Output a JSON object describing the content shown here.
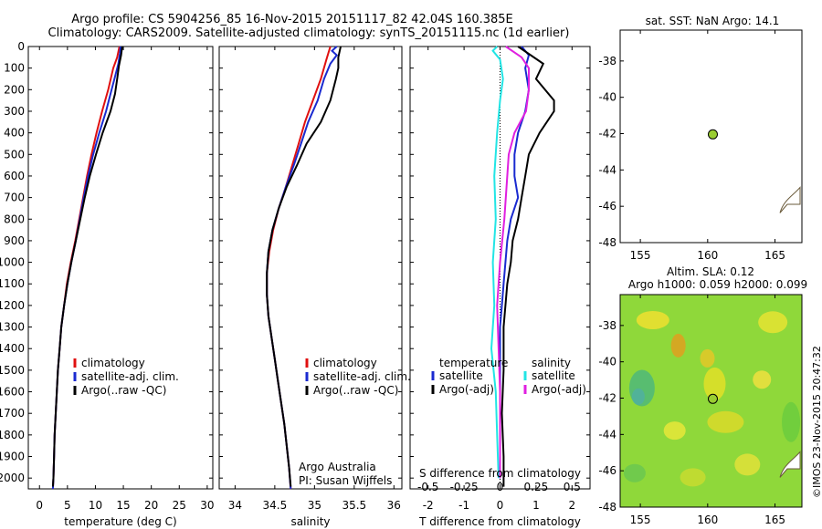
{
  "header": {
    "title": "Argo profile: CS 5904256_85 16-Nov-2015 20151117_82 42.04S 160.385E",
    "subtitle": "Climatology: CARS2009. Satellite-adjusted climatology: synTS_20151115.nc (1d earlier)"
  },
  "colors": {
    "climatology": "#e01010",
    "satellite": "#1a2ad0",
    "argo": "#000000",
    "sal_satellite": "#22e5e5",
    "sal_argo": "#e020e0",
    "marker": "#9acd32",
    "coast": "#6a5a3a"
  },
  "chart_data": [
    {
      "id": "temperature",
      "type": "line",
      "xlabel": "temperature (deg C)",
      "ylabel": "",
      "xlim": [
        -2,
        31
      ],
      "ylim": [
        2050,
        0
      ],
      "x_ticks": [
        "0",
        "5",
        "10",
        "15",
        "20",
        "25",
        "30"
      ],
      "x_tick_values": [
        0,
        5,
        10,
        15,
        20,
        25,
        30
      ],
      "y_ticks": [
        "0",
        "100",
        "200",
        "300",
        "400",
        "500",
        "600",
        "700",
        "800",
        "900",
        "1000",
        "1100",
        "1200",
        "1300",
        "1400",
        "1500",
        "1600",
        "1700",
        "1800",
        "1900",
        "2000"
      ],
      "y_tick_values": [
        0,
        100,
        200,
        300,
        400,
        500,
        600,
        700,
        800,
        900,
        1000,
        1100,
        1200,
        1300,
        1400,
        1500,
        1600,
        1700,
        1800,
        1900,
        2000
      ],
      "legend": [
        "climatology",
        "satellite-adj. clim.",
        "Argo(..raw -QC)"
      ],
      "series": [
        {
          "name": "climatology",
          "color_key": "climatology",
          "points": [
            [
              14.3,
              0
            ],
            [
              13.9,
              50
            ],
            [
              13.2,
              100
            ],
            [
              12.3,
              200
            ],
            [
              11.2,
              300
            ],
            [
              10.2,
              400
            ],
            [
              9.3,
              500
            ],
            [
              8.5,
              600
            ],
            [
              7.8,
              700
            ],
            [
              7.1,
              800
            ],
            [
              6.4,
              900
            ],
            [
              5.6,
              1000
            ],
            [
              4.9,
              1100
            ],
            [
              4.4,
              1200
            ],
            [
              3.9,
              1300
            ],
            [
              3.6,
              1400
            ],
            [
              3.3,
              1500
            ],
            [
              3.1,
              1600
            ],
            [
              2.9,
              1700
            ],
            [
              2.7,
              1800
            ],
            [
              2.6,
              1900
            ],
            [
              2.5,
              2000
            ],
            [
              2.4,
              2050
            ]
          ]
        },
        {
          "name": "satellite-adj. clim.",
          "color_key": "satellite",
          "points": [
            [
              14.5,
              0
            ],
            [
              14.4,
              30
            ],
            [
              14.1,
              80
            ],
            [
              13.4,
              150
            ],
            [
              12.9,
              200
            ],
            [
              11.9,
              300
            ],
            [
              10.7,
              400
            ],
            [
              9.6,
              500
            ],
            [
              8.7,
              600
            ],
            [
              7.9,
              700
            ],
            [
              7.2,
              800
            ],
            [
              6.5,
              900
            ],
            [
              5.7,
              1000
            ],
            [
              5.0,
              1100
            ],
            [
              4.4,
              1200
            ],
            [
              3.9,
              1300
            ],
            [
              3.6,
              1400
            ],
            [
              3.3,
              1500
            ],
            [
              3.1,
              1600
            ],
            [
              2.9,
              1700
            ],
            [
              2.7,
              1800
            ],
            [
              2.6,
              1900
            ],
            [
              2.5,
              2000
            ],
            [
              2.4,
              2050
            ]
          ]
        },
        {
          "name": "Argo(..raw -QC)",
          "color_key": "argo",
          "points": [
            [
              14.8,
              0
            ],
            [
              14.6,
              40
            ],
            [
              14.2,
              90
            ],
            [
              13.9,
              150
            ],
            [
              13.5,
              220
            ],
            [
              12.7,
              300
            ],
            [
              11.3,
              400
            ],
            [
              10.1,
              500
            ],
            [
              9.0,
              600
            ],
            [
              8.1,
              700
            ],
            [
              7.3,
              800
            ],
            [
              6.5,
              900
            ],
            [
              5.7,
              1000
            ],
            [
              5.0,
              1100
            ],
            [
              4.4,
              1200
            ],
            [
              3.9,
              1300
            ],
            [
              3.6,
              1400
            ],
            [
              3.3,
              1500
            ],
            [
              3.1,
              1600
            ],
            [
              2.9,
              1700
            ],
            [
              2.7,
              1800
            ],
            [
              2.6,
              1900
            ],
            [
              2.5,
              2000
            ],
            [
              2.4,
              2040
            ]
          ]
        }
      ]
    },
    {
      "id": "salinity",
      "type": "line",
      "xlabel": "salinity",
      "ylabel": "",
      "xlim": [
        33.8,
        36.1
      ],
      "ylim": [
        2050,
        0
      ],
      "x_ticks": [
        "34",
        "34.5",
        "35",
        "35.5",
        "36"
      ],
      "x_tick_values": [
        34,
        34.5,
        35,
        35.5,
        36
      ],
      "legend": [
        "climatology",
        "satellite-adj. clim.",
        "Argo(..raw -QC)"
      ],
      "annotations": [
        "Argo Australia",
        "PI: Susan Wijffels"
      ],
      "series": [
        {
          "name": "climatology",
          "color_key": "climatology",
          "points": [
            [
              35.2,
              0
            ],
            [
              35.15,
              60
            ],
            [
              35.08,
              150
            ],
            [
              34.98,
              250
            ],
            [
              34.88,
              350
            ],
            [
              34.8,
              450
            ],
            [
              34.72,
              550
            ],
            [
              34.64,
              650
            ],
            [
              34.55,
              750
            ],
            [
              34.48,
              850
            ],
            [
              34.43,
              950
            ],
            [
              34.4,
              1050
            ],
            [
              34.4,
              1150
            ],
            [
              34.42,
              1250
            ],
            [
              34.46,
              1350
            ],
            [
              34.5,
              1450
            ],
            [
              34.54,
              1550
            ],
            [
              34.58,
              1650
            ],
            [
              34.62,
              1750
            ],
            [
              34.65,
              1850
            ],
            [
              34.68,
              1950
            ],
            [
              34.7,
              2050
            ]
          ]
        },
        {
          "name": "satellite-adj. clim.",
          "color_key": "satellite",
          "points": [
            [
              35.28,
              0
            ],
            [
              35.22,
              20
            ],
            [
              35.28,
              40
            ],
            [
              35.2,
              80
            ],
            [
              35.12,
              150
            ],
            [
              35.04,
              250
            ],
            [
              34.92,
              350
            ],
            [
              34.83,
              450
            ],
            [
              34.74,
              550
            ],
            [
              34.64,
              650
            ],
            [
              34.55,
              750
            ],
            [
              34.47,
              850
            ],
            [
              34.42,
              950
            ],
            [
              34.4,
              1050
            ],
            [
              34.4,
              1150
            ],
            [
              34.42,
              1250
            ],
            [
              34.46,
              1350
            ],
            [
              34.5,
              1450
            ],
            [
              34.54,
              1550
            ],
            [
              34.58,
              1650
            ],
            [
              34.62,
              1750
            ],
            [
              34.65,
              1850
            ],
            [
              34.68,
              1950
            ],
            [
              34.7,
              2050
            ]
          ]
        },
        {
          "name": "Argo(..raw -QC)",
          "color_key": "argo",
          "points": [
            [
              35.33,
              0
            ],
            [
              35.3,
              50
            ],
            [
              35.3,
              100
            ],
            [
              35.27,
              150
            ],
            [
              35.2,
              250
            ],
            [
              35.08,
              350
            ],
            [
              34.9,
              450
            ],
            [
              34.78,
              550
            ],
            [
              34.65,
              650
            ],
            [
              34.55,
              750
            ],
            [
              34.47,
              850
            ],
            [
              34.42,
              950
            ],
            [
              34.4,
              1050
            ],
            [
              34.4,
              1150
            ],
            [
              34.42,
              1250
            ],
            [
              34.46,
              1350
            ],
            [
              34.5,
              1450
            ],
            [
              34.54,
              1550
            ],
            [
              34.58,
              1650
            ],
            [
              34.62,
              1750
            ],
            [
              34.65,
              1850
            ],
            [
              34.68,
              1950
            ],
            [
              34.7,
              2040
            ]
          ]
        }
      ]
    },
    {
      "id": "difference",
      "type": "line",
      "xlabel": "T difference from climatology",
      "xlabel_top": "S difference from climatology",
      "ylabel": "",
      "xlim": [
        -2.5,
        2.5
      ],
      "ylim": [
        2050,
        0
      ],
      "x_ticks": [
        "-2",
        "-1",
        "0",
        "1",
        "2"
      ],
      "x_tick_values": [
        -2,
        -1,
        0,
        1,
        2
      ],
      "s_ticks": [
        "-0.5",
        "-0.25",
        "0",
        "0.25",
        "0.5"
      ],
      "s_tick_values": [
        -0.5,
        -0.25,
        0,
        0.25,
        0.5
      ],
      "legend_left_title": "temperature",
      "legend_right_title": "salinity",
      "legend_left": [
        "satellite",
        "Argo(-adj)"
      ],
      "legend_right": [
        "satellite",
        "Argo(-adj)"
      ],
      "series": [
        {
          "name": "satellite",
          "color_key": "satellite",
          "points": [
            [
              0.6,
              0
            ],
            [
              0.8,
              40
            ],
            [
              0.7,
              100
            ],
            [
              0.8,
              200
            ],
            [
              0.7,
              300
            ],
            [
              0.5,
              400
            ],
            [
              0.4,
              500
            ],
            [
              0.4,
              600
            ],
            [
              0.5,
              700
            ],
            [
              0.3,
              800
            ],
            [
              0.2,
              900
            ],
            [
              0.15,
              1000
            ],
            [
              0.1,
              1100
            ],
            [
              0.05,
              1200
            ],
            [
              0.0,
              1300
            ],
            [
              0.0,
              1400
            ],
            [
              0.0,
              1600
            ],
            [
              0.0,
              1800
            ],
            [
              0.0,
              2000
            ]
          ]
        },
        {
          "name": "Argo(-adj)",
          "color_key": "argo",
          "points": [
            [
              0.5,
              0
            ],
            [
              1.2,
              80
            ],
            [
              1.0,
              150
            ],
            [
              1.5,
              250
            ],
            [
              1.5,
              300
            ],
            [
              1.1,
              400
            ],
            [
              0.8,
              500
            ],
            [
              0.7,
              600
            ],
            [
              0.6,
              700
            ],
            [
              0.5,
              800
            ],
            [
              0.35,
              900
            ],
            [
              0.3,
              1000
            ],
            [
              0.2,
              1100
            ],
            [
              0.15,
              1200
            ],
            [
              0.1,
              1300
            ],
            [
              0.1,
              1500
            ],
            [
              0.05,
              1700
            ],
            [
              0.1,
              1900
            ],
            [
              0.1,
              2040
            ]
          ]
        },
        {
          "name": "satellite ",
          "color_key": "sal_satellite",
          "points": [
            [
              -0.02,
              0
            ],
            [
              -0.05,
              20
            ],
            [
              0.0,
              60
            ],
            [
              0.02,
              150
            ],
            [
              0.0,
              250
            ],
            [
              -0.02,
              400
            ],
            [
              -0.04,
              600
            ],
            [
              -0.03,
              800
            ],
            [
              -0.05,
              1000
            ],
            [
              -0.04,
              1200
            ],
            [
              -0.06,
              1400
            ],
            [
              -0.03,
              1600
            ],
            [
              -0.02,
              1800
            ],
            [
              -0.01,
              2000
            ]
          ]
        },
        {
          "name": "Argo(-adj) ",
          "color_key": "sal_argo",
          "points": [
            [
              0.04,
              0
            ],
            [
              0.15,
              50
            ],
            [
              0.2,
              100
            ],
            [
              0.2,
              200
            ],
            [
              0.18,
              300
            ],
            [
              0.1,
              400
            ],
            [
              0.06,
              500
            ],
            [
              0.05,
              600
            ],
            [
              0.03,
              800
            ],
            [
              0.0,
              1000
            ],
            [
              -0.02,
              1200
            ],
            [
              -0.01,
              1400
            ],
            [
              0.0,
              1600
            ],
            [
              0.0,
              1800
            ],
            [
              0.0,
              2000
            ]
          ]
        }
      ]
    },
    {
      "id": "sst-map",
      "type": "scatter",
      "title": "sat. SST: NaN Argo: 14.1",
      "xlim": [
        153.5,
        167
      ],
      "ylim": [
        -48,
        -36.3
      ],
      "x_ticks": [
        "155",
        "160",
        "165"
      ],
      "x_tick_values": [
        155,
        160,
        165
      ],
      "y_ticks": [
        "-38",
        "-40",
        "-42",
        "-44",
        "-46",
        "-48"
      ],
      "y_tick_values": [
        -38,
        -40,
        -42,
        -44,
        -46,
        -48
      ],
      "points": [
        {
          "x": 160.385,
          "y": -42.04
        }
      ]
    },
    {
      "id": "sla-map",
      "type": "heatmap",
      "title": "Altim. SLA: 0.12",
      "subtitle": "Argo h1000: 0.059 h2000: 0.099",
      "xlim": [
        153.5,
        167
      ],
      "ylim": [
        -48,
        -36.3
      ],
      "x_ticks": [
        "155",
        "160",
        "165"
      ],
      "x_tick_values": [
        155,
        160,
        165
      ],
      "y_ticks": [
        "-38",
        "-40",
        "-42",
        "-44",
        "-46",
        "-48"
      ],
      "y_tick_values": [
        -38,
        -40,
        -42,
        -44,
        -46,
        -48
      ],
      "points": [
        {
          "x": 160.385,
          "y": -42.04
        }
      ],
      "credit": "©IMOS 23-Nov-2015 20:47:32"
    }
  ]
}
